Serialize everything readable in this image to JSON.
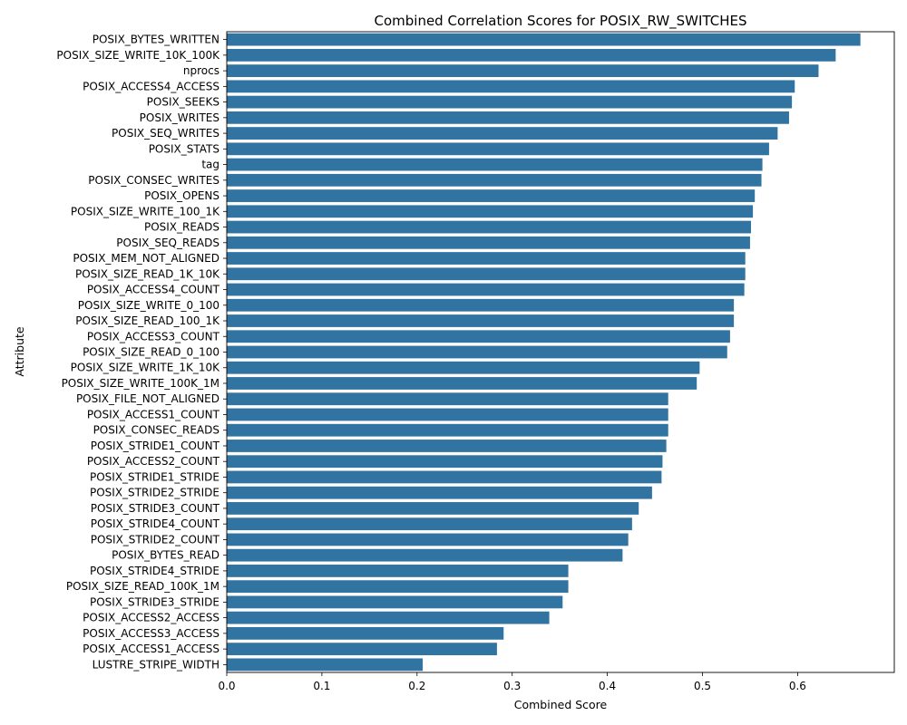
{
  "chart_data": {
    "type": "bar",
    "orientation": "horizontal",
    "title": "Combined Correlation Scores for POSIX_RW_SWITCHES",
    "xlabel": "Combined Score",
    "ylabel": "Attribute",
    "xlim": [
      0,
      0.7
    ],
    "xticks": [
      "0.0",
      "0.1",
      "0.2",
      "0.3",
      "0.4",
      "0.5",
      "0.6"
    ],
    "bar_color": "#3274a1",
    "grid": false,
    "categories": [
      "POSIX_BYTES_WRITTEN",
      "POSIX_SIZE_WRITE_10K_100K",
      "nprocs",
      "POSIX_ACCESS4_ACCESS",
      "POSIX_SEEKS",
      "POSIX_WRITES",
      "POSIX_SEQ_WRITES",
      "POSIX_STATS",
      "tag",
      "POSIX_CONSEC_WRITES",
      "POSIX_OPENS",
      "POSIX_SIZE_WRITE_100_1K",
      "POSIX_READS",
      "POSIX_SEQ_READS",
      "POSIX_MEM_NOT_ALIGNED",
      "POSIX_SIZE_READ_1K_10K",
      "POSIX_ACCESS4_COUNT",
      "POSIX_SIZE_WRITE_0_100",
      "POSIX_SIZE_READ_100_1K",
      "POSIX_ACCESS3_COUNT",
      "POSIX_SIZE_READ_0_100",
      "POSIX_SIZE_WRITE_1K_10K",
      "POSIX_SIZE_WRITE_100K_1M",
      "POSIX_FILE_NOT_ALIGNED",
      "POSIX_ACCESS1_COUNT",
      "POSIX_CONSEC_READS",
      "POSIX_STRIDE1_COUNT",
      "POSIX_ACCESS2_COUNT",
      "POSIX_STRIDE1_STRIDE",
      "POSIX_STRIDE2_STRIDE",
      "POSIX_STRIDE3_COUNT",
      "POSIX_STRIDE4_COUNT",
      "POSIX_STRIDE2_COUNT",
      "POSIX_BYTES_READ",
      "POSIX_STRIDE4_STRIDE",
      "POSIX_SIZE_READ_100K_1M",
      "POSIX_STRIDE3_STRIDE",
      "POSIX_ACCESS2_ACCESS",
      "POSIX_ACCESS3_ACCESS",
      "POSIX_ACCESS1_ACCESS",
      "LUSTRE_STRIPE_WIDTH"
    ],
    "values": [
      0.666,
      0.64,
      0.622,
      0.597,
      0.594,
      0.591,
      0.579,
      0.57,
      0.563,
      0.562,
      0.555,
      0.553,
      0.551,
      0.55,
      0.545,
      0.545,
      0.544,
      0.533,
      0.533,
      0.529,
      0.526,
      0.497,
      0.494,
      0.464,
      0.464,
      0.464,
      0.462,
      0.458,
      0.457,
      0.447,
      0.433,
      0.426,
      0.422,
      0.416,
      0.359,
      0.359,
      0.353,
      0.339,
      0.291,
      0.284,
      0.206
    ]
  }
}
